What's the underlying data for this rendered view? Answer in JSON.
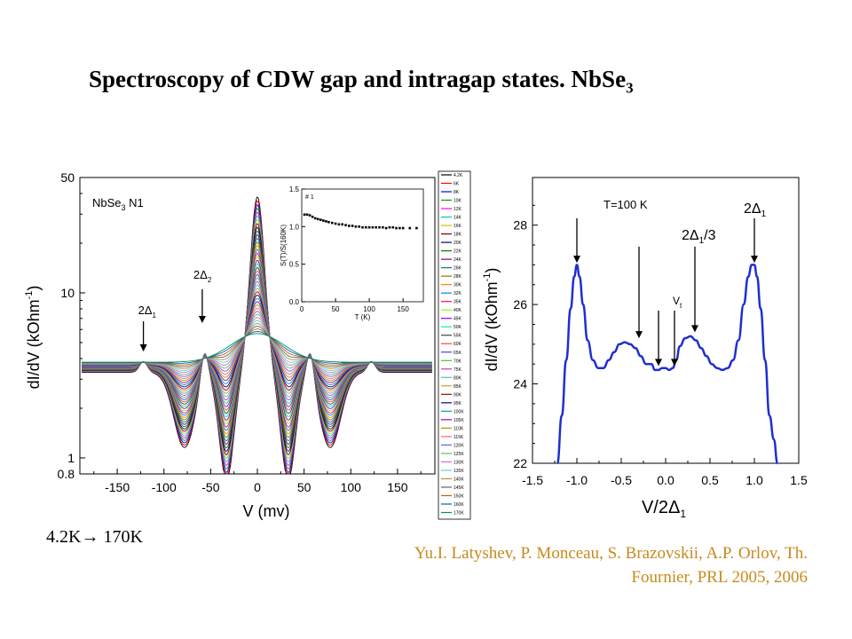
{
  "title_main": "Spectroscopy of CDW gap and intragap states. NbSe",
  "title_sub": "3",
  "temperature_range": "4.2K→ 170K",
  "citation_line1": "Yu.I. Latyshev, P. Monceau, S. Brazovskii, A.P. Orlov, Th.",
  "citation_line2": "Fournier, PRL 2005, 2006",
  "colors": {
    "text": "#000000",
    "citation": "#c88a1c",
    "right_curve": "#1f2fd0"
  },
  "chart_data": [
    {
      "type": "line",
      "panel": "left",
      "sample_label": "NbSe",
      "sample_sub": "3",
      "sample_suffix": " N1",
      "xlabel": "V (mv)",
      "ylabel_main": "dI/dV (kOhm",
      "ylabel_sup": "-1",
      "ylabel_end": ")",
      "xlim": [
        -190,
        190
      ],
      "ylim": [
        0.8,
        50
      ],
      "yscale": "log",
      "xticks": [
        -150,
        -100,
        -50,
        0,
        50,
        100,
        150
      ],
      "yticks": [
        0.8,
        1,
        10,
        50
      ],
      "annotations": [
        {
          "text": "2Δ",
          "sub": "1",
          "x": -122
        },
        {
          "text": "2Δ",
          "sub": "2",
          "x": -59
        }
      ],
      "legend": [
        "4.2K",
        "6K",
        "8K",
        "10K",
        "12K",
        "14K",
        "16K",
        "18K",
        "20K",
        "22K",
        "24K",
        "26K",
        "28K",
        "30K",
        "32K",
        "35K",
        "40K",
        "45K",
        "50K",
        "55K",
        "60K",
        "65K",
        "70K",
        "75K",
        "80K",
        "85K",
        "90K",
        "95K",
        "100K",
        "105K",
        "110K",
        "115K",
        "120K",
        "125K",
        "130K",
        "135K",
        "140K",
        "145K",
        "150K",
        "160K",
        "170K"
      ],
      "series_colors": [
        "#000000",
        "#ff0000",
        "#0000ff",
        "#00a000",
        "#ff00ff",
        "#00c8c8",
        "#c8c800",
        "#800000",
        "#000080",
        "#008000",
        "#800080",
        "#008080",
        "#808000",
        "#ff8000",
        "#0080ff",
        "#ff0080",
        "#80ff00",
        "#8000ff",
        "#00ff80",
        "#404040",
        "#ff4040",
        "#4040ff",
        "#40c040",
        "#c040c0",
        "#40c0c0",
        "#c0a040",
        "#a00000",
        "#0000a0",
        "#00a0a0",
        "#a000a0",
        "#a0a000",
        "#ff6060",
        "#6060ff",
        "#60c060",
        "#d070d0",
        "#60d0d0",
        "#b09040",
        "#606060",
        "#c06000",
        "#0060c0",
        "#009060"
      ],
      "inset": {
        "label": "# 1",
        "xlabel": "T (K)",
        "ylabel": "S(T)/S(160K)",
        "xlim": [
          0,
          180
        ],
        "ylim": [
          0,
          1.5
        ],
        "xticks": [
          0,
          50,
          100,
          150
        ],
        "yticks": [
          0.0,
          0.5,
          1.0,
          1.5
        ],
        "points": [
          [
            4,
            1.16
          ],
          [
            8,
            1.16
          ],
          [
            12,
            1.15
          ],
          [
            16,
            1.13
          ],
          [
            20,
            1.11
          ],
          [
            24,
            1.1
          ],
          [
            28,
            1.09
          ],
          [
            32,
            1.08
          ],
          [
            36,
            1.07
          ],
          [
            40,
            1.06
          ],
          [
            45,
            1.05
          ],
          [
            50,
            1.04
          ],
          [
            55,
            1.03
          ],
          [
            60,
            1.03
          ],
          [
            65,
            1.02
          ],
          [
            70,
            1.01
          ],
          [
            75,
            1.01
          ],
          [
            80,
            1.0
          ],
          [
            85,
            1.0
          ],
          [
            90,
            0.99
          ],
          [
            95,
            0.99
          ],
          [
            100,
            0.99
          ],
          [
            105,
            0.99
          ],
          [
            110,
            0.99
          ],
          [
            115,
            0.99
          ],
          [
            120,
            0.99
          ],
          [
            125,
            0.98
          ],
          [
            130,
            0.99
          ],
          [
            135,
            0.99
          ],
          [
            140,
            0.98
          ],
          [
            145,
            0.98
          ],
          [
            150,
            0.98
          ],
          [
            160,
            0.98
          ],
          [
            170,
            0.98
          ]
        ]
      }
    },
    {
      "type": "line",
      "panel": "right",
      "label": "T=100 K",
      "xlabel_main": "V/2Δ",
      "xlabel_sub": "1",
      "ylabel_main": "dI/dV (kOhm",
      "ylabel_sup": "-1",
      "ylabel_end": ")",
      "xlim": [
        -1.5,
        1.5
      ],
      "ylim": [
        22,
        29.2
      ],
      "xticks": [
        -1.5,
        -1.0,
        -0.5,
        0.0,
        0.5,
        1.0,
        1.5
      ],
      "xtick_labels": [
        "-1.5",
        "-1.0",
        "-0.5",
        "0.0",
        "0.5",
        "1.0",
        "1.5"
      ],
      "yticks": [
        22,
        24,
        26,
        28
      ],
      "annotations": [
        {
          "text": "2Δ",
          "sub": "1",
          "x": 1.0
        },
        {
          "text": "2Δ",
          "sub": "1",
          "suffix": "/3",
          "x": 0.33
        },
        {
          "text": "V",
          "sub": "t",
          "x": 0.1
        }
      ],
      "x": [
        -1.22,
        -1.17,
        -1.12,
        -1.07,
        -1.03,
        -1.0,
        -0.97,
        -0.93,
        -0.88,
        -0.82,
        -0.76,
        -0.7,
        -0.64,
        -0.58,
        -0.52,
        -0.46,
        -0.4,
        -0.34,
        -0.28,
        -0.22,
        -0.16,
        -0.12,
        -0.08,
        -0.04,
        0.0,
        0.04,
        0.08,
        0.12,
        0.16,
        0.22,
        0.28,
        0.34,
        0.4,
        0.46,
        0.52,
        0.58,
        0.64,
        0.7,
        0.76,
        0.82,
        0.88,
        0.93,
        0.97,
        1.0,
        1.03,
        1.07,
        1.12,
        1.17,
        1.22,
        1.26
      ],
      "y": [
        22.0,
        23.2,
        24.6,
        25.9,
        26.7,
        27.0,
        26.7,
        26.0,
        25.1,
        24.6,
        24.4,
        24.4,
        24.6,
        24.8,
        25.0,
        25.05,
        25.0,
        24.9,
        24.7,
        24.5,
        24.5,
        24.35,
        24.35,
        24.4,
        24.4,
        24.35,
        24.4,
        24.6,
        24.95,
        25.15,
        25.2,
        25.1,
        24.9,
        24.7,
        24.5,
        24.4,
        24.35,
        24.4,
        24.6,
        25.1,
        26.0,
        26.7,
        27.0,
        27.0,
        26.7,
        25.9,
        24.6,
        23.2,
        22.6,
        22.0
      ]
    }
  ]
}
